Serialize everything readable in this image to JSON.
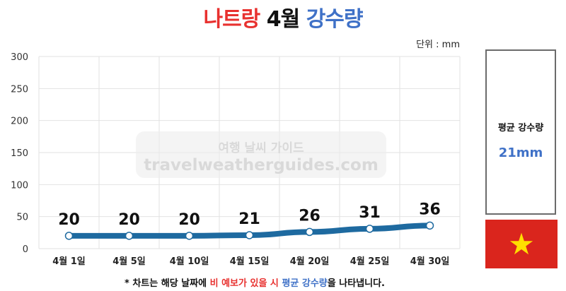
{
  "header": {
    "title_part1": "나트랑",
    "title_part2": "4월",
    "title_part3": "강수량"
  },
  "unit_label": "단위 : mm",
  "watermark": {
    "line1": "여행 날씨 가이드",
    "line2": "travelweatherguides.com"
  },
  "chart_data": {
    "type": "line",
    "categories": [
      "4월 1일",
      "4월 5일",
      "4월 10일",
      "4월 15일",
      "4월 20일",
      "4월 25일",
      "4월 30일"
    ],
    "values": [
      20,
      20,
      20,
      21,
      26,
      31,
      36
    ],
    "ylim": [
      0,
      300
    ],
    "yticks": [
      0,
      50,
      100,
      150,
      200,
      250,
      300
    ],
    "grid": true,
    "line_color": "#1e6aa0"
  },
  "side_panel": {
    "label": "평균 강수량",
    "value": "21mm"
  },
  "flag": {
    "background": "#da251d",
    "star": "#ffde00"
  },
  "footnote": {
    "part1": "* 차트는 해당 날짜에 ",
    "part2": "비 예보가 있을 시",
    "part3": " ",
    "part4": "평균 강수량",
    "part5": "을 나타냅니다."
  }
}
